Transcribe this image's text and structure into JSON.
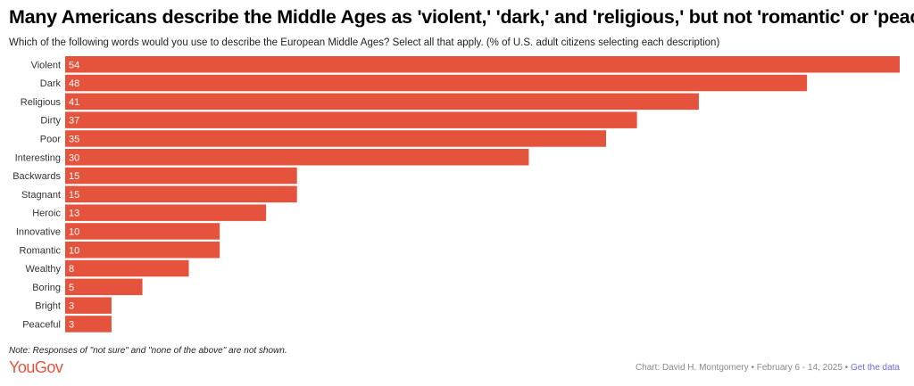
{
  "header": {
    "title": "Many Americans describe the Middle Ages as 'violent,' 'dark,' and 'religious,' but not 'romantic' or 'peaceful'",
    "subtitle": "Which of the following words would you use to describe the European Middle Ages? Select all that apply. (% of U.S. adult citizens selecting each description)"
  },
  "chart_data": {
    "type": "bar",
    "orientation": "horizontal",
    "categories": [
      "Violent",
      "Dark",
      "Religious",
      "Dirty",
      "Poor",
      "Interesting",
      "Backwards",
      "Stagnant",
      "Heroic",
      "Innovative",
      "Romantic",
      "Wealthy",
      "Boring",
      "Bright",
      "Peaceful"
    ],
    "values": [
      54,
      48,
      41,
      37,
      35,
      30,
      15,
      15,
      13,
      10,
      10,
      8,
      5,
      3,
      3
    ],
    "value_labels": [
      "54",
      "48",
      "41",
      "37",
      "35",
      "30",
      "15",
      "15",
      "13",
      "10",
      "10",
      "8",
      "5",
      "3",
      "3"
    ],
    "bar_color": "#e5533c",
    "grid": false,
    "legend": "none"
  },
  "footer": {
    "note": "Note: Responses of \"not sure\" and \"none of the above\" are not shown.",
    "logo": "YouGov",
    "credit": "Chart: David H. Montgomery • February 6 - 14, 2025 •",
    "data_link": "Get the data"
  }
}
